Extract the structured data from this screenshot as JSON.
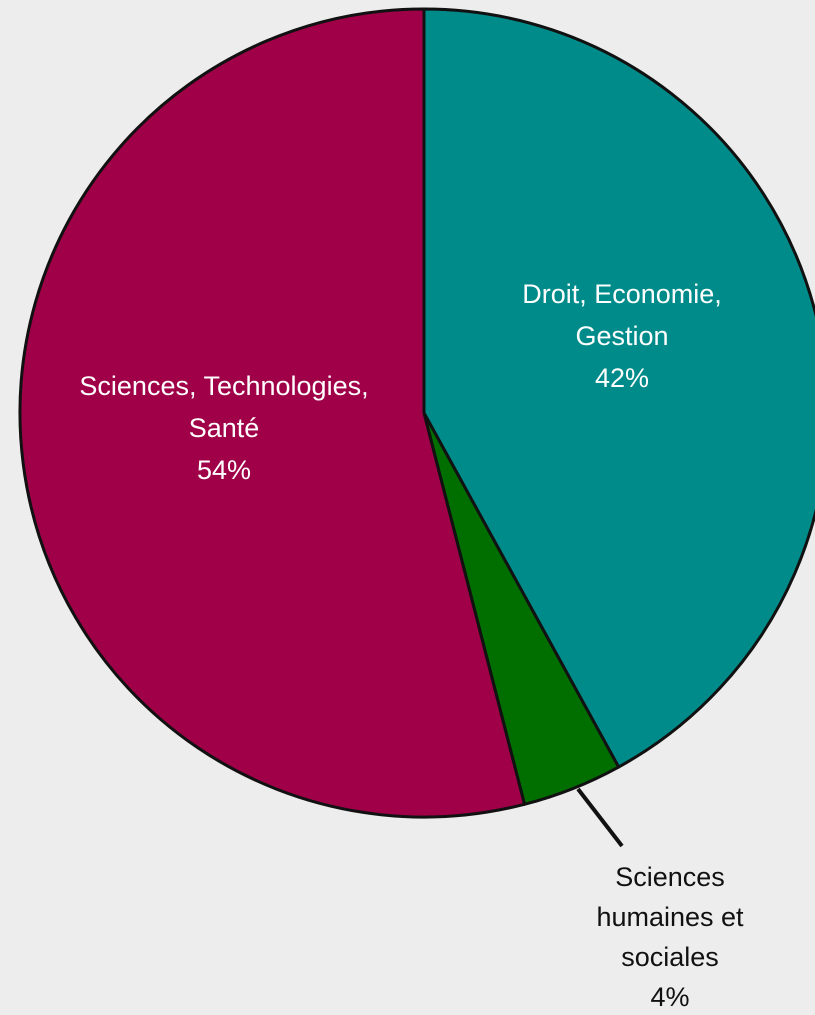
{
  "chart_data": {
    "type": "pie",
    "slices": [
      {
        "lines": [
          "Droit, Economie,",
          "Gestion"
        ],
        "percent_label": "42%",
        "value": 42,
        "color": "#008b8b"
      },
      {
        "lines": [
          "Sciences",
          "humaines et",
          "sociales"
        ],
        "percent_label": "4%",
        "value": 4,
        "color": "#006f00"
      },
      {
        "lines": [
          "Sciences, Technologies,",
          "Santé"
        ],
        "percent_label": "54%",
        "value": 54,
        "color": "#a00048"
      }
    ]
  }
}
